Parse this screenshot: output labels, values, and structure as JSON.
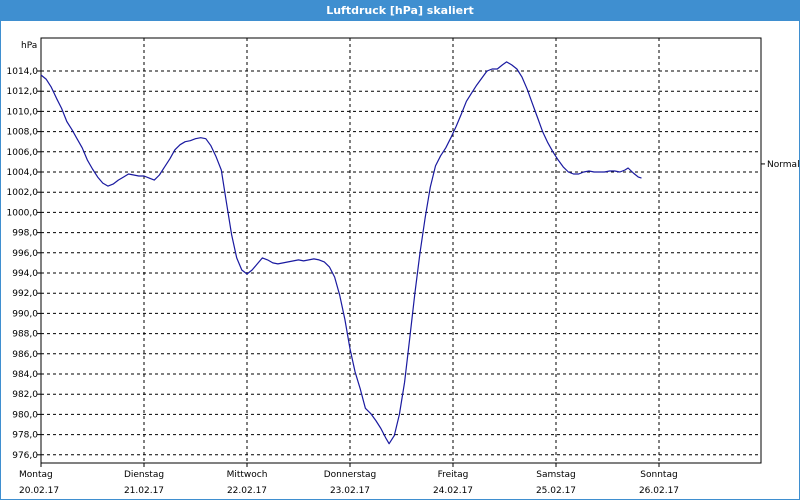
{
  "window": {
    "title": "Luftdruck [hPa] skaliert"
  },
  "chart_data": {
    "type": "line",
    "title": "Luftdruck [hPa] skaliert",
    "ylabel": "hPa",
    "ylim": [
      975.0,
      1016.6
    ],
    "yticks": [
      "1014,0",
      "1012,0",
      "1010,0",
      "1008,0",
      "1006,0",
      "1004,0",
      "1002,0",
      "1000,0",
      "998,0",
      "996,0",
      "994,0",
      "992,0",
      "990,0",
      "988,0",
      "986,0",
      "984,0",
      "982,0",
      "980,0",
      "978,0",
      "976,0"
    ],
    "x_days": [
      {
        "day": "Montag",
        "date": "20.02.17"
      },
      {
        "day": "Dienstag",
        "date": "21.02.17"
      },
      {
        "day": "Mittwoch",
        "date": "22.02.17"
      },
      {
        "day": "Donnerstag",
        "date": "23.02.17"
      },
      {
        "day": "Freitag",
        "date": "24.02.17"
      },
      {
        "day": "Samstag",
        "date": "25.02.17"
      },
      {
        "day": "Sonntag",
        "date": "26.02.17"
      }
    ],
    "grid": true,
    "grid_style": "dashed",
    "line_color": "#1a1aa0",
    "reference_label": "Normal",
    "reference_value": 1004.8,
    "x_unit": "days since start (Montag 00:00)",
    "series": [
      {
        "name": "Luftdruck",
        "points": [
          [
            0.0,
            1013.6
          ],
          [
            0.05,
            1013.2
          ],
          [
            0.1,
            1012.4
          ],
          [
            0.15,
            1011.3
          ],
          [
            0.2,
            1010.3
          ],
          [
            0.25,
            1009.0
          ],
          [
            0.3,
            1008.2
          ],
          [
            0.35,
            1007.3
          ],
          [
            0.4,
            1006.4
          ],
          [
            0.45,
            1005.2
          ],
          [
            0.5,
            1004.3
          ],
          [
            0.55,
            1003.5
          ],
          [
            0.6,
            1002.9
          ],
          [
            0.65,
            1002.6
          ],
          [
            0.7,
            1002.8
          ],
          [
            0.75,
            1003.2
          ],
          [
            0.8,
            1003.5
          ],
          [
            0.85,
            1003.8
          ],
          [
            0.9,
            1003.7
          ],
          [
            0.95,
            1003.6
          ],
          [
            1.0,
            1003.6
          ],
          [
            1.05,
            1003.4
          ],
          [
            1.1,
            1003.2
          ],
          [
            1.15,
            1003.7
          ],
          [
            1.2,
            1004.5
          ],
          [
            1.25,
            1005.3
          ],
          [
            1.3,
            1006.2
          ],
          [
            1.35,
            1006.7
          ],
          [
            1.4,
            1007.0
          ],
          [
            1.45,
            1007.1
          ],
          [
            1.5,
            1007.3
          ],
          [
            1.55,
            1007.4
          ],
          [
            1.6,
            1007.3
          ],
          [
            1.65,
            1006.6
          ],
          [
            1.7,
            1005.5
          ],
          [
            1.75,
            1004.2
          ],
          [
            1.8,
            1001.0
          ],
          [
            1.85,
            997.8
          ],
          [
            1.9,
            995.5
          ],
          [
            1.95,
            994.3
          ],
          [
            2.0,
            993.9
          ],
          [
            2.05,
            994.3
          ],
          [
            2.1,
            994.9
          ],
          [
            2.15,
            995.5
          ],
          [
            2.2,
            995.3
          ],
          [
            2.25,
            995.0
          ],
          [
            2.3,
            994.9
          ],
          [
            2.35,
            995.0
          ],
          [
            2.4,
            995.1
          ],
          [
            2.45,
            995.2
          ],
          [
            2.5,
            995.3
          ],
          [
            2.55,
            995.2
          ],
          [
            2.6,
            995.3
          ],
          [
            2.65,
            995.4
          ],
          [
            2.7,
            995.3
          ],
          [
            2.75,
            995.1
          ],
          [
            2.8,
            994.6
          ],
          [
            2.85,
            993.6
          ],
          [
            2.9,
            991.8
          ],
          [
            2.95,
            989.4
          ],
          [
            3.0,
            986.5
          ],
          [
            3.05,
            984.2
          ],
          [
            3.1,
            982.5
          ],
          [
            3.15,
            980.6
          ],
          [
            3.2,
            980.1
          ],
          [
            3.25,
            979.4
          ],
          [
            3.3,
            978.6
          ],
          [
            3.35,
            977.6
          ],
          [
            3.38,
            977.1
          ],
          [
            3.43,
            977.9
          ],
          [
            3.48,
            980.0
          ],
          [
            3.53,
            983.2
          ],
          [
            3.58,
            987.5
          ],
          [
            3.63,
            992.0
          ],
          [
            3.68,
            996.0
          ],
          [
            3.73,
            999.5
          ],
          [
            3.78,
            1002.5
          ],
          [
            3.83,
            1004.6
          ],
          [
            3.88,
            1005.6
          ],
          [
            3.93,
            1006.4
          ],
          [
            3.98,
            1007.4
          ],
          [
            4.03,
            1008.5
          ],
          [
            4.08,
            1009.7
          ],
          [
            4.13,
            1011.0
          ],
          [
            4.18,
            1011.8
          ],
          [
            4.23,
            1012.6
          ],
          [
            4.28,
            1013.3
          ],
          [
            4.33,
            1014.0
          ],
          [
            4.38,
            1014.2
          ],
          [
            4.43,
            1014.2
          ],
          [
            4.48,
            1014.6
          ],
          [
            4.52,
            1014.9
          ],
          [
            4.57,
            1014.6
          ],
          [
            4.62,
            1014.2
          ],
          [
            4.67,
            1013.4
          ],
          [
            4.72,
            1012.2
          ],
          [
            4.77,
            1010.8
          ],
          [
            4.82,
            1009.4
          ],
          [
            4.87,
            1008.0
          ],
          [
            4.92,
            1006.9
          ],
          [
            4.97,
            1006.0
          ],
          [
            5.02,
            1005.2
          ],
          [
            5.07,
            1004.5
          ],
          [
            5.12,
            1004.0
          ],
          [
            5.17,
            1003.8
          ],
          [
            5.22,
            1003.8
          ],
          [
            5.27,
            1004.0
          ],
          [
            5.32,
            1004.1
          ],
          [
            5.37,
            1004.0
          ],
          [
            5.42,
            1004.0
          ],
          [
            5.47,
            1004.0
          ],
          [
            5.52,
            1004.1
          ],
          [
            5.57,
            1004.1
          ],
          [
            5.62,
            1004.0
          ],
          [
            5.67,
            1004.2
          ],
          [
            5.7,
            1004.4
          ],
          [
            5.75,
            1003.9
          ],
          [
            5.8,
            1003.5
          ],
          [
            5.83,
            1003.4
          ]
        ]
      }
    ]
  }
}
